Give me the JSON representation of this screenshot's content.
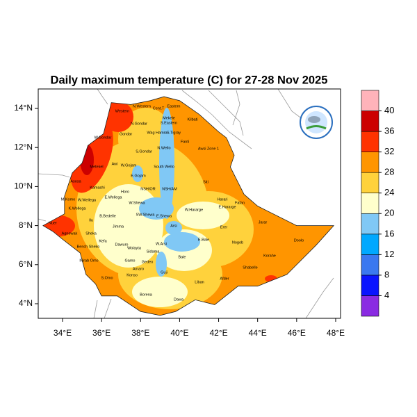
{
  "map": {
    "title": "Daily maximum temperature (C) for 27-28 Nov 2025",
    "xticks": [
      {
        "value": 34,
        "label": "34°E"
      },
      {
        "value": 36,
        "label": "36°E"
      },
      {
        "value": 38,
        "label": "38°E"
      },
      {
        "value": 40,
        "label": "40°E"
      },
      {
        "value": 42,
        "label": "42°E"
      },
      {
        "value": 44,
        "label": "44°E"
      },
      {
        "value": 46,
        "label": "46°E"
      },
      {
        "value": 48,
        "label": "48°E"
      }
    ],
    "yticks": [
      {
        "value": 4,
        "label": "4°N"
      },
      {
        "value": 6,
        "label": "6°N"
      },
      {
        "value": 8,
        "label": "8°N"
      },
      {
        "value": 10,
        "label": "10°N"
      },
      {
        "value": 12,
        "label": "12°N"
      },
      {
        "value": 14,
        "label": "14°N"
      }
    ],
    "colorbar": {
      "levels": [
        4,
        8,
        12,
        16,
        20,
        24,
        28,
        32,
        36,
        40
      ],
      "colors": [
        "#8a2be2",
        "#0a14ff",
        "#3a78f0",
        "#00a8ff",
        "#80c8f5",
        "#ffffcc",
        "#ffd23c",
        "#ff9500",
        "#ff3300",
        "#cc0000",
        "#ffb3ba"
      ]
    },
    "regions": [
      "Western",
      "N.Western",
      "Cent.T",
      "Eastern",
      "Mekele",
      "S.Eastern",
      "Kilbati",
      "N.Gondar",
      "Wag Hamra",
      "S.Tigray",
      "Gondar",
      "Awsi Zone 1",
      "Fanti",
      "N.Wello",
      "S.Gondar",
      "W.Gondar",
      "Metekel",
      "Awi",
      "W.Gojam",
      "E.Gojam",
      "South Wello",
      "Asosa",
      "Kamashi",
      "Horo",
      "NSH/OR",
      "NSH/AM",
      "Siti",
      "Harari",
      "Fafan",
      "E.Hararge",
      "W.Hararge",
      "M.Komo",
      "W.Wellega",
      "K.Wellega",
      "E.Wellega",
      "W.Shewa",
      "B.Bedelle",
      "Ilu",
      "E.Shewa",
      "SW.Shewa",
      "Jimma",
      "Arsi",
      "Erer",
      "Jarar",
      "Agnewak",
      "Sheka",
      "E.Bale",
      "W.Arsi",
      "Nogob",
      "Doolo",
      "Kefa",
      "Bench Sheko",
      "Dawuro",
      "Wolayta",
      "Sidama",
      "Bale",
      "Korahe",
      "Mirab Omo",
      "Gamo",
      "Gedeo",
      "Nuer",
      "Shabelle",
      "Amaro",
      "Guji",
      "S.Omo",
      "Konso",
      "Afder",
      "Liban",
      "Borena",
      "Dawa"
    ]
  }
}
